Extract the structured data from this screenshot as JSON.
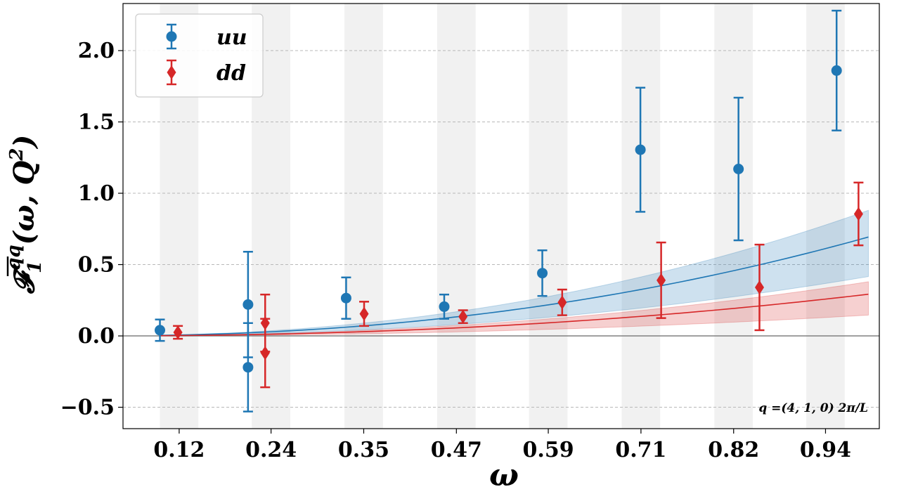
{
  "chart_data": {
    "type": "scatter",
    "xlabel": "ω",
    "ylabel": "F̅₁^qq(ω, Q²)",
    "ylabel_parts": {
      "base": "𝓕",
      "sub": "1",
      "sup": "qq",
      "args": "(ω, Q",
      "args_sup": "2",
      "args_close": ")"
    },
    "annotation": "q =(4, 1, 0) 2π/L",
    "categories": [
      "0.12",
      "0.24",
      "0.35",
      "0.47",
      "0.59",
      "0.71",
      "0.82",
      "0.94"
    ],
    "category_values": [
      0.118,
      0.235,
      0.353,
      0.471,
      0.588,
      0.706,
      0.824,
      0.941
    ],
    "xlim": [
      0.0465,
      1.0095
    ],
    "ylim": [
      -0.65,
      2.33
    ],
    "yticks": [
      -0.5,
      0.0,
      0.5,
      1.0,
      1.5,
      2.0
    ],
    "ytick_labels": [
      "−0.5",
      "0.0",
      "0.5",
      "1.0",
      "1.5",
      "2.0"
    ],
    "grid": "horizontal dashed",
    "legend_position": "top-left",
    "series": [
      {
        "name": "uu",
        "color": "#1f77b4",
        "marker": "circle",
        "points": [
          {
            "x": 0.0935,
            "y": 0.04,
            "err": 0.075
          },
          {
            "x": 0.2057,
            "y": 0.22,
            "err": 0.37
          },
          {
            "x": 0.2057,
            "y": -0.22,
            "err": 0.31
          },
          {
            "x": 0.3306,
            "y": 0.265,
            "err": 0.145
          },
          {
            "x": 0.4555,
            "y": 0.205,
            "err": 0.085
          },
          {
            "x": 0.5804,
            "y": 0.44,
            "err": 0.16
          },
          {
            "x": 0.7053,
            "y": 1.305,
            "err": 0.435
          },
          {
            "x": 0.8302,
            "y": 1.17,
            "err": 0.5
          },
          {
            "x": 0.9551,
            "y": 1.86,
            "err": 0.42
          }
        ],
        "fit": {
          "x0": 0.0935,
          "x1": 0.9956,
          "coef": 0.7,
          "power": 2.2,
          "band_upper": 1.27,
          "band_lower": 0.6
        }
      },
      {
        "name": "dd",
        "color": "#d62728",
        "marker": "diamond",
        "points": [
          {
            "x": 0.1164,
            "y": 0.025,
            "err": 0.045
          },
          {
            "x": 0.2275,
            "y": 0.09,
            "err": 0.2
          },
          {
            "x": 0.2275,
            "y": -0.12,
            "err": 0.24
          },
          {
            "x": 0.3535,
            "y": 0.155,
            "err": 0.085
          },
          {
            "x": 0.4794,
            "y": 0.135,
            "err": 0.045
          },
          {
            "x": 0.6057,
            "y": 0.235,
            "err": 0.09
          },
          {
            "x": 0.7317,
            "y": 0.39,
            "err": 0.265
          },
          {
            "x": 0.8569,
            "y": 0.34,
            "err": 0.3
          },
          {
            "x": 0.983,
            "y": 0.855,
            "err": 0.22
          }
        ],
        "fit": {
          "x0": 0.0935,
          "x1": 0.9956,
          "coef": 0.295,
          "power": 2.2,
          "band_upper": 1.3,
          "band_lower": 0.5
        }
      }
    ]
  }
}
